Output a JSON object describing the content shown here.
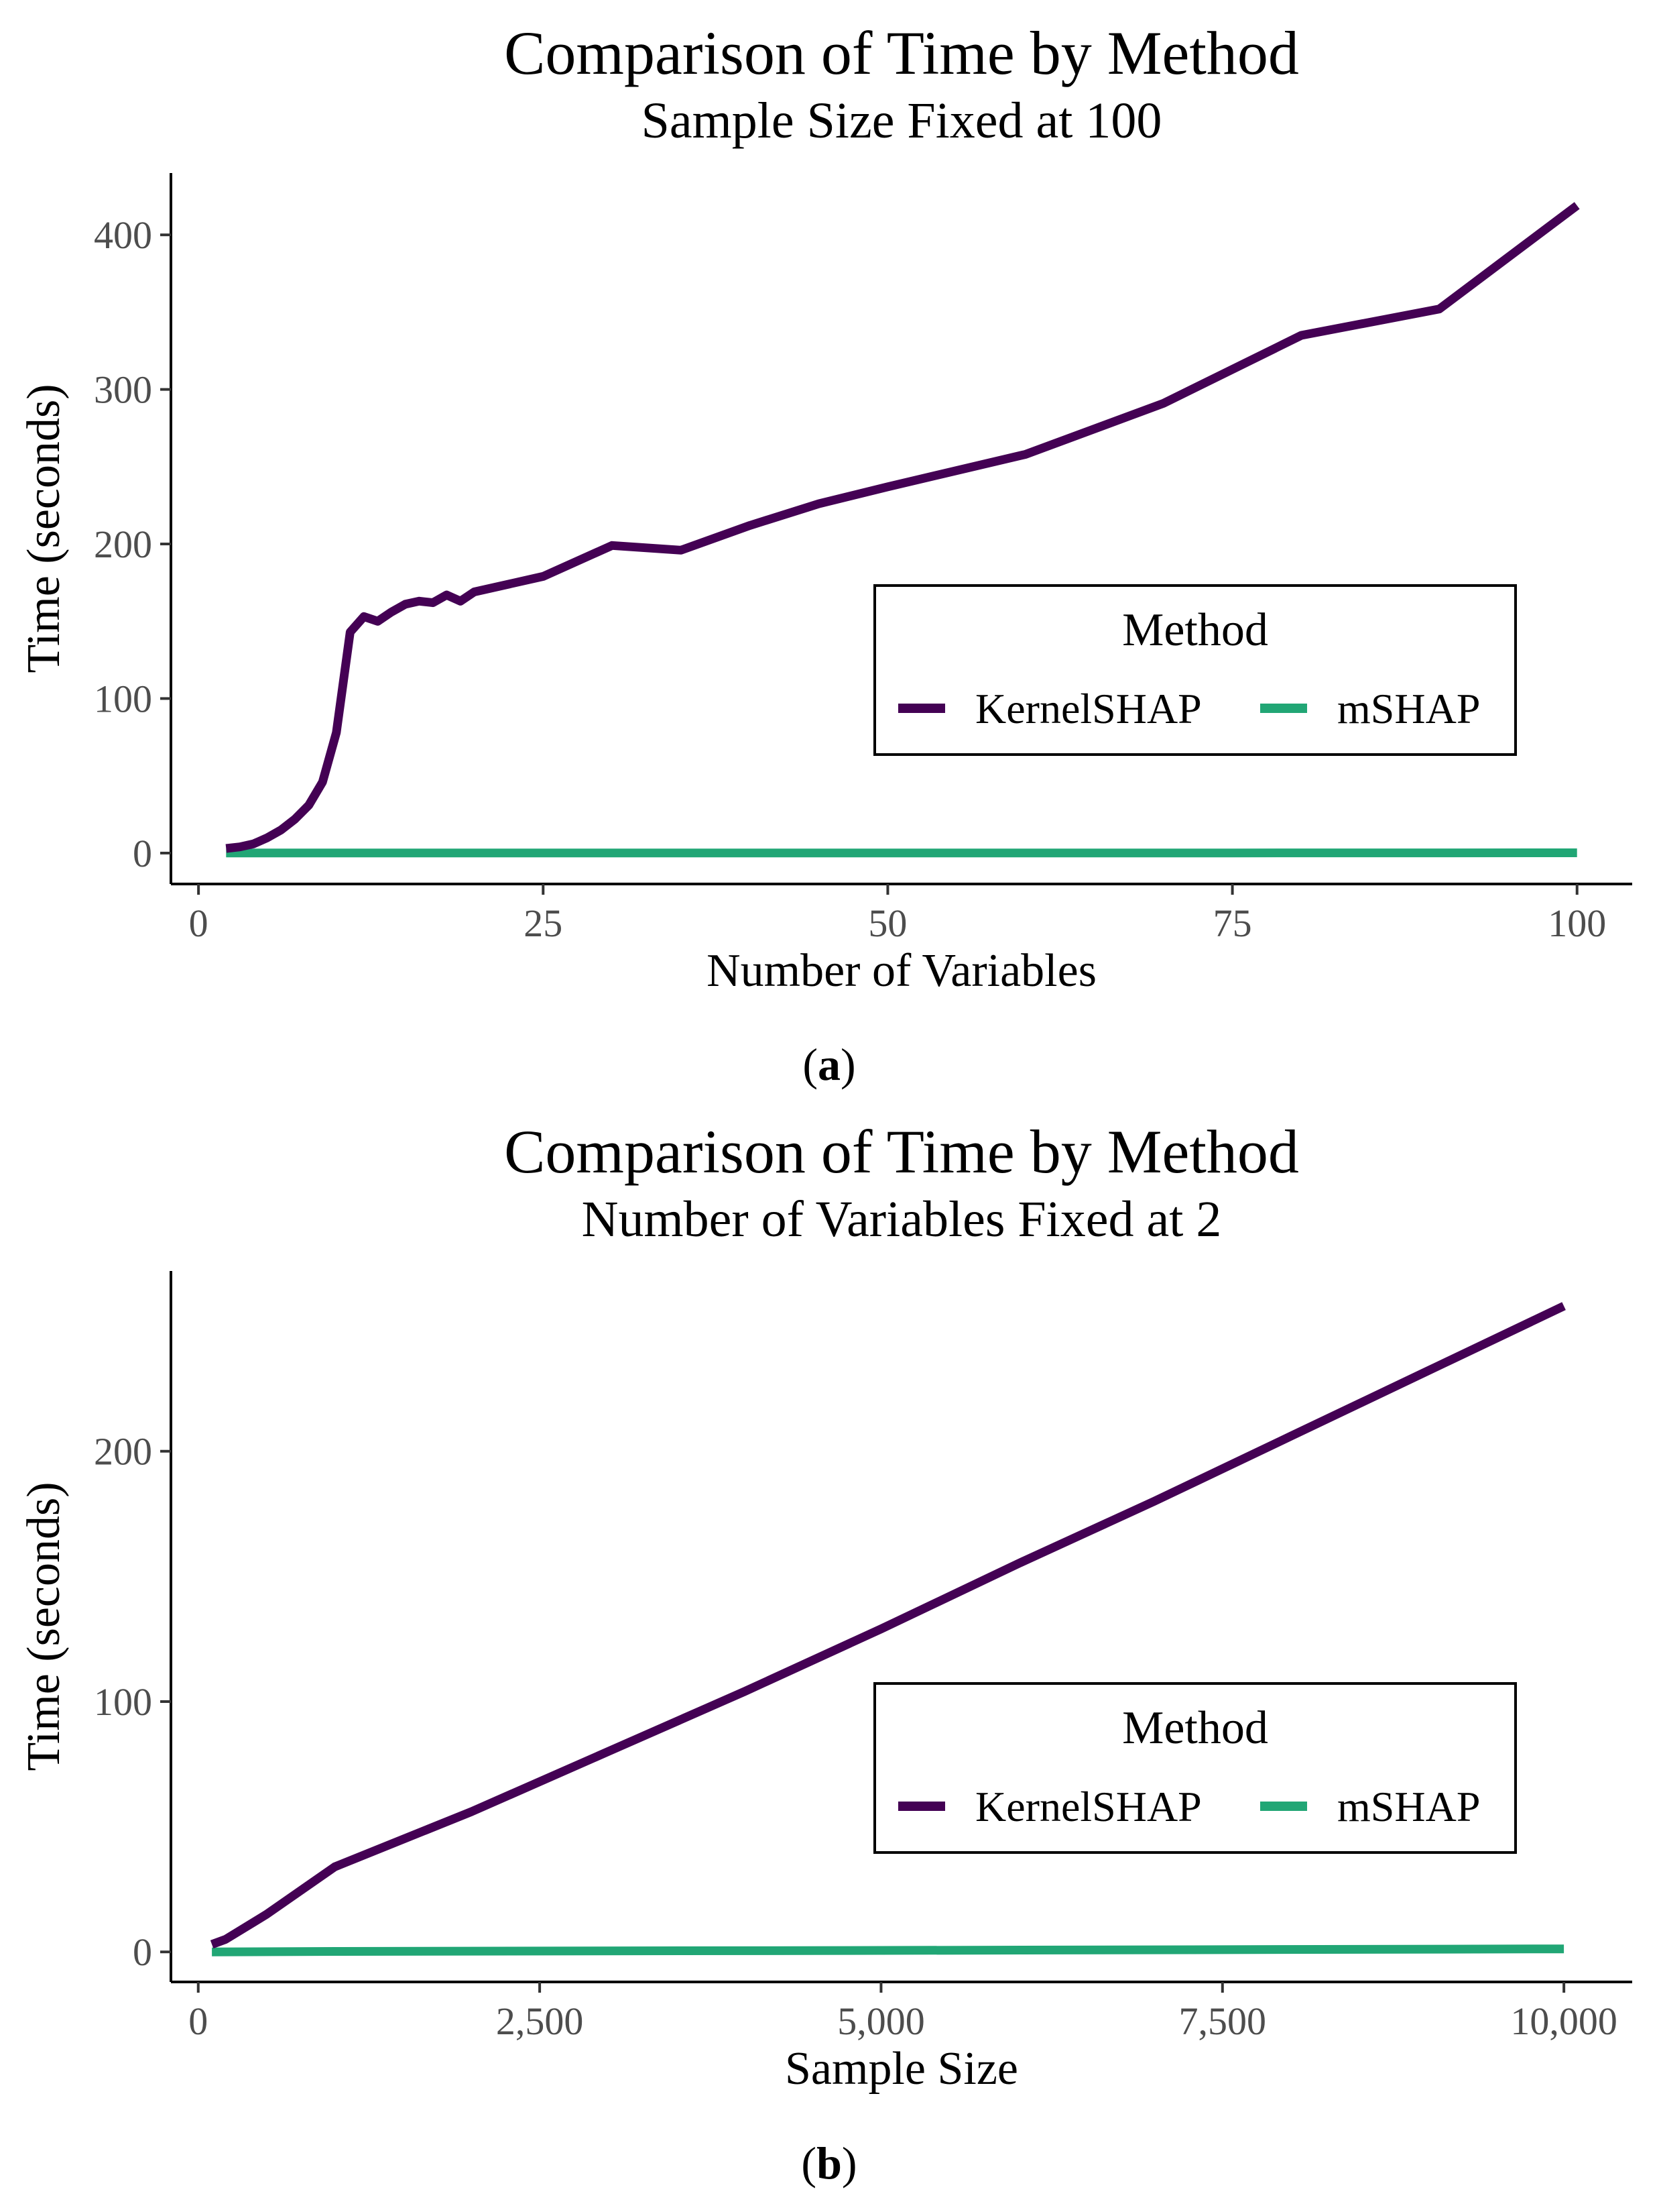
{
  "chart_data": [
    {
      "type": "line",
      "panel": "(a)",
      "panel_label_letter": "a",
      "title": "Comparison of Time by Method",
      "subtitle": "Sample Size Fixed at 100",
      "xlabel": "Number of Variables",
      "ylabel": "Time (seconds)",
      "xlim": [
        -2,
        104
      ],
      "ylim": [
        -20,
        440
      ],
      "xticks": [
        0,
        25,
        50,
        75,
        100
      ],
      "xtick_labels": [
        "0",
        "25",
        "50",
        "75",
        "100"
      ],
      "yticks": [
        0,
        100,
        200,
        300,
        400
      ],
      "ytick_labels": [
        "0",
        "100",
        "200",
        "300",
        "400"
      ],
      "legend_title": "Method",
      "legend_position": "center-right",
      "series": [
        {
          "name": "KernelSHAP",
          "color": "#440154",
          "x": [
            2,
            3,
            4,
            5,
            6,
            7,
            8,
            9,
            10,
            11,
            12,
            13,
            14,
            15,
            16,
            17,
            18,
            19,
            20,
            25,
            30,
            35,
            40,
            45,
            50,
            60,
            70,
            80,
            90,
            100
          ],
          "y": [
            3,
            4,
            6,
            10,
            15,
            22,
            31,
            46,
            78,
            143,
            153,
            150,
            156,
            161,
            163,
            162,
            167,
            163,
            169,
            179,
            199,
            196,
            212,
            226,
            237,
            258,
            291,
            335,
            352,
            419
          ]
        },
        {
          "name": "mSHAP",
          "color": "#21a675",
          "x": [
            2,
            10,
            25,
            50,
            75,
            100
          ],
          "y": [
            0.1,
            0.1,
            0.1,
            0.1,
            0.1,
            0.2
          ]
        }
      ]
    },
    {
      "type": "line",
      "panel": "(b)",
      "panel_label_letter": "b",
      "title": "Comparison of Time by Method",
      "subtitle": "Number of Variables Fixed at 2",
      "xlabel": "Sample Size",
      "ylabel": "Time (seconds)",
      "xlim": [
        -200,
        10500
      ],
      "ylim": [
        -12,
        272
      ],
      "xticks": [
        0,
        2500,
        5000,
        7500,
        10000
      ],
      "xtick_labels": [
        "0",
        "2,500",
        "5,000",
        "7,500",
        "10,000"
      ],
      "yticks": [
        0,
        100,
        200
      ],
      "ytick_labels": [
        "0",
        "100",
        "200"
      ],
      "legend_title": "Method",
      "legend_position": "center-right",
      "series": [
        {
          "name": "KernelSHAP",
          "color": "#440154",
          "x": [
            100,
            200,
            500,
            1000,
            2000,
            3000,
            4000,
            5000,
            6000,
            7000,
            8000,
            9000,
            10000
          ],
          "y": [
            3,
            5,
            15,
            34,
            56,
            80,
            104,
            129,
            155,
            180,
            206,
            232,
            258
          ]
        },
        {
          "name": "mSHAP",
          "color": "#21a675",
          "x": [
            100,
            1000,
            5000,
            10000
          ],
          "y": [
            0,
            0.2,
            0.6,
            1.2
          ]
        }
      ]
    }
  ]
}
